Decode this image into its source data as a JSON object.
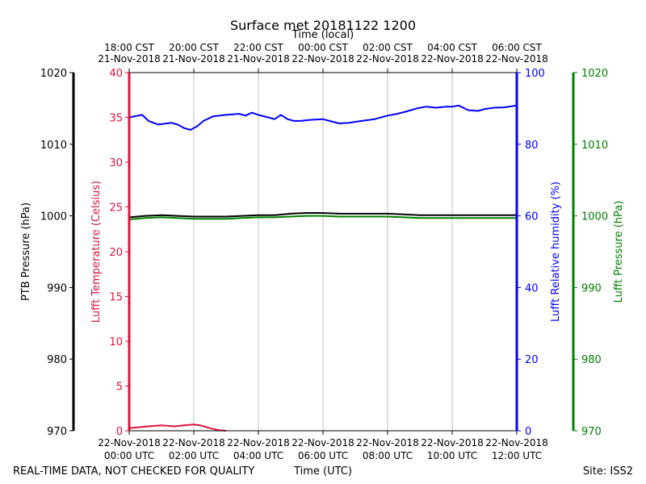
{
  "chart_data": {
    "type": "line",
    "title": "Surface met 20181122 1200",
    "top_axis_label": "Time (local)",
    "bottom_axis_label": "Time (UTC)",
    "footer_left": "REAL-TIME DATA, NOT CHECKED FOR QUALITY",
    "footer_right": "Site: ISS2",
    "x_range_hours": [
      0,
      12
    ],
    "x_ticks_utc": [
      {
        "h": 0,
        "date": "22-Nov-2018",
        "time": "00:00 UTC"
      },
      {
        "h": 2,
        "date": "22-Nov-2018",
        "time": "02:00 UTC"
      },
      {
        "h": 4,
        "date": "22-Nov-2018",
        "time": "04:00 UTC"
      },
      {
        "h": 6,
        "date": "22-Nov-2018",
        "time": "06:00 UTC"
      },
      {
        "h": 8,
        "date": "22-Nov-2018",
        "time": "08:00 UTC"
      },
      {
        "h": 10,
        "date": "22-Nov-2018",
        "time": "10:00 UTC"
      },
      {
        "h": 12,
        "date": "22-Nov-2018",
        "time": "12:00 UTC"
      }
    ],
    "x_ticks_local": [
      {
        "h": 0,
        "time": "18:00 CST",
        "date": "21-Nov-2018"
      },
      {
        "h": 2,
        "time": "20:00 CST",
        "date": "21-Nov-2018"
      },
      {
        "h": 4,
        "time": "22:00 CST",
        "date": "21-Nov-2018"
      },
      {
        "h": 6,
        "time": "00:00 CST",
        "date": "22-Nov-2018"
      },
      {
        "h": 8,
        "time": "02:00 CST",
        "date": "22-Nov-2018"
      },
      {
        "h": 10,
        "time": "04:00 CST",
        "date": "22-Nov-2018"
      },
      {
        "h": 12,
        "time": "06:00 CST",
        "date": "22-Nov-2018"
      }
    ],
    "axes": {
      "ptb_pressure": {
        "label": "PTB Pressure (hPa)",
        "range": [
          970,
          1020
        ],
        "ticks": [
          970,
          980,
          990,
          1000,
          1010,
          1020
        ],
        "color": "#000000"
      },
      "temperature": {
        "label": "Lufft Temperature (Celsius)",
        "range": [
          0,
          40
        ],
        "ticks": [
          0,
          5,
          10,
          15,
          20,
          25,
          30,
          35,
          40
        ],
        "color": "#dc143c"
      },
      "humidity": {
        "label": "Lufft Relative humidity (%)",
        "range": [
          0,
          100
        ],
        "ticks": [
          0,
          20,
          40,
          60,
          80,
          100
        ],
        "color": "#0000ff"
      },
      "lufft_pressure": {
        "label": "Lufft Pressure (hPa)",
        "range": [
          970,
          1020
        ],
        "ticks": [
          970,
          980,
          990,
          1000,
          1010,
          1020
        ],
        "color": "#008000"
      }
    },
    "series": [
      {
        "name": "Lufft Relative humidity (%)",
        "axis": "humidity",
        "color": "#0000ff",
        "x": [
          0,
          0.4,
          0.6,
          0.9,
          1.3,
          1.5,
          1.7,
          1.9,
          2.0,
          2.1,
          2.3,
          2.6,
          3.0,
          3.4,
          3.6,
          3.8,
          4.0,
          4.3,
          4.5,
          4.7,
          4.9,
          5.1,
          5.3,
          5.6,
          6.0,
          6.2,
          6.5,
          6.8,
          7.2,
          7.6,
          8.0,
          8.3,
          8.6,
          8.9,
          9.2,
          9.5,
          9.8,
          10.0,
          10.2,
          10.5,
          10.8,
          11.0,
          11.3,
          11.6,
          12.0
        ],
        "y": [
          87.5,
          88.2,
          86.5,
          85.5,
          86.0,
          85.5,
          84.5,
          84.0,
          84.5,
          85.0,
          86.5,
          87.8,
          88.2,
          88.5,
          88.0,
          88.8,
          88.2,
          87.5,
          87.0,
          88.2,
          87.0,
          86.5,
          86.5,
          86.8,
          87.0,
          86.5,
          85.8,
          86.0,
          86.5,
          87.0,
          88.0,
          88.5,
          89.2,
          90.0,
          90.5,
          90.2,
          90.5,
          90.5,
          90.8,
          89.5,
          89.3,
          89.8,
          90.2,
          90.3,
          90.8
        ]
      },
      {
        "name": "PTB Pressure (hPa)",
        "axis": "ptb_pressure",
        "color": "#000000",
        "x": [
          0,
          0.5,
          1.0,
          1.5,
          2.0,
          2.5,
          3.0,
          3.5,
          4.0,
          4.5,
          5.0,
          5.5,
          6.0,
          6.5,
          7.0,
          7.5,
          8.0,
          8.5,
          9.0,
          9.5,
          10.0,
          10.5,
          11.0,
          11.5,
          12.0
        ],
        "y": [
          999.8,
          1000.0,
          1000.1,
          1000.0,
          999.9,
          999.9,
          999.9,
          1000.0,
          1000.1,
          1000.1,
          1000.3,
          1000.4,
          1000.4,
          1000.3,
          1000.3,
          1000.3,
          1000.3,
          1000.2,
          1000.1,
          1000.1,
          1000.1,
          1000.1,
          1000.1,
          1000.1,
          1000.1
        ]
      },
      {
        "name": "Lufft Pressure (hPa)",
        "axis": "lufft_pressure",
        "color": "#008000",
        "x": [
          0,
          0.5,
          1.0,
          1.5,
          2.0,
          2.5,
          3.0,
          3.5,
          4.0,
          4.5,
          5.0,
          5.5,
          6.0,
          6.5,
          7.0,
          7.5,
          8.0,
          8.5,
          9.0,
          9.5,
          10.0,
          10.5,
          11.0,
          11.5,
          12.0
        ],
        "y": [
          999.5,
          999.7,
          999.8,
          999.7,
          999.6,
          999.6,
          999.6,
          999.7,
          999.8,
          999.8,
          999.9,
          1000.0,
          1000.0,
          999.9,
          999.9,
          999.9,
          999.9,
          999.8,
          999.7,
          999.7,
          999.7,
          999.7,
          999.7,
          999.7,
          999.7
        ]
      },
      {
        "name": "Lufft Temperature (Celsius)",
        "axis": "temperature",
        "color": "#dc143c",
        "x": [
          0,
          0.3,
          0.6,
          1.0,
          1.4,
          1.7,
          2.0,
          2.2,
          2.4,
          2.6,
          2.8,
          3.0
        ],
        "y": [
          0.3,
          0.4,
          0.5,
          0.6,
          0.5,
          0.6,
          0.7,
          0.6,
          0.4,
          0.2,
          0.05,
          0
        ]
      }
    ]
  }
}
